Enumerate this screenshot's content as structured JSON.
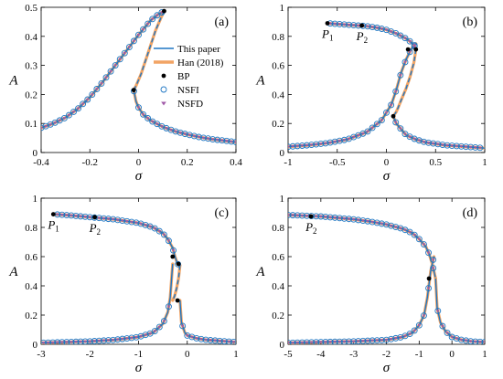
{
  "colors": {
    "this_paper": "#1f77c4",
    "han": "#f2a464",
    "bp": "#000000",
    "nsfi": "#1f77c4",
    "nsfd": "#a05aa8"
  },
  "legend": {
    "entries": [
      "This paper",
      "Han (2018)",
      "BP",
      "NSFI",
      "NSFD"
    ],
    "placement": "panel-a-right"
  },
  "chart_data": [
    {
      "type": "line",
      "panel_label": "(a)",
      "xlabel": "σ",
      "ylabel": "A",
      "xlim": [
        -0.4,
        0.4
      ],
      "ylim": [
        0,
        0.5
      ],
      "xticks": [
        "-0.4",
        "-0.2",
        "0",
        "0.2",
        "0.4"
      ],
      "yticks": [
        "0",
        "0.1",
        "0.2",
        "0.3",
        "0.4",
        "0.5"
      ],
      "upper_branch": {
        "x": [
          -0.4,
          -0.35,
          -0.3,
          -0.25,
          -0.2,
          -0.15,
          -0.1,
          -0.05,
          0.0,
          0.05,
          0.08,
          0.105
        ],
        "y": [
          0.085,
          0.1,
          0.12,
          0.15,
          0.19,
          0.24,
          0.295,
          0.35,
          0.405,
          0.455,
          0.475,
          0.487
        ]
      },
      "unstable_branch": {
        "x": [
          0.105,
          0.09,
          0.07,
          0.05,
          0.03,
          0.01,
          -0.01,
          -0.02
        ],
        "y": [
          0.487,
          0.46,
          0.42,
          0.37,
          0.32,
          0.27,
          0.23,
          0.215
        ]
      },
      "lower_branch": {
        "x": [
          -0.02,
          -0.01,
          0.0,
          0.02,
          0.05,
          0.1,
          0.15,
          0.2,
          0.25,
          0.3,
          0.35,
          0.4
        ],
        "y": [
          0.215,
          0.175,
          0.155,
          0.13,
          0.11,
          0.088,
          0.073,
          0.062,
          0.053,
          0.046,
          0.041,
          0.036
        ]
      },
      "bifurcation_points": [
        {
          "x": 0.105,
          "y": 0.487
        },
        {
          "x": -0.02,
          "y": 0.215
        }
      ],
      "annotations": []
    },
    {
      "type": "line",
      "panel_label": "(b)",
      "xlabel": "σ",
      "ylabel": "A",
      "xlim": [
        -1,
        1
      ],
      "ylim": [
        0,
        1
      ],
      "xticks": [
        "-1",
        "-0.5",
        "0",
        "0.5",
        "1"
      ],
      "yticks": [
        "0",
        "0.2",
        "0.4",
        "0.6",
        "0.8",
        "1"
      ],
      "upper_branch": {
        "x": [
          -0.6,
          -0.5,
          -0.4,
          -0.3,
          -0.2,
          -0.1,
          0.0,
          0.1,
          0.2,
          0.25,
          0.28,
          0.3
        ],
        "y": [
          0.89,
          0.885,
          0.88,
          0.875,
          0.87,
          0.86,
          0.845,
          0.82,
          0.785,
          0.76,
          0.74,
          0.71
        ]
      },
      "unstable_branch": {
        "x": [
          0.3,
          0.28,
          0.24,
          0.2,
          0.15,
          0.12,
          0.1,
          0.07
        ],
        "y": [
          0.71,
          0.62,
          0.52,
          0.44,
          0.36,
          0.31,
          0.28,
          0.25
        ]
      },
      "lower_branch": {
        "x": [
          -1.0,
          -0.8,
          -0.6,
          -0.4,
          -0.2,
          -0.05,
          0.05,
          0.1,
          0.15,
          0.2,
          0.25,
          0.3
        ],
        "y": [
          0.04,
          0.05,
          0.065,
          0.09,
          0.14,
          0.22,
          0.33,
          0.43,
          0.55,
          0.64,
          0.71,
          0.75
        ]
      },
      "tail_branch": {
        "x": [
          0.07,
          0.1,
          0.2,
          0.3,
          0.4,
          0.5,
          0.6,
          0.7,
          0.8,
          0.9,
          1.0
        ],
        "y": [
          0.25,
          0.2,
          0.12,
          0.09,
          0.07,
          0.06,
          0.05,
          0.045,
          0.04,
          0.035,
          0.03
        ]
      },
      "bifurcation_points": [
        {
          "x": -0.6,
          "y": 0.89
        },
        {
          "x": -0.25,
          "y": 0.875
        },
        {
          "x": 0.22,
          "y": 0.71
        },
        {
          "x": 0.3,
          "y": 0.71
        },
        {
          "x": 0.07,
          "y": 0.25
        }
      ],
      "annotations": [
        {
          "letter": "P",
          "sub": "1",
          "x": -0.6,
          "y": 0.89
        },
        {
          "letter": "P",
          "sub": "2",
          "x": -0.25,
          "y": 0.875
        }
      ]
    },
    {
      "type": "line",
      "panel_label": "(c)",
      "xlabel": "σ",
      "ylabel": "A",
      "xlim": [
        -3,
        1
      ],
      "ylim": [
        0,
        1
      ],
      "xticks": [
        "-3",
        "-2",
        "-1",
        "0",
        "1"
      ],
      "yticks": [
        "0",
        "0.2",
        "0.4",
        "0.6",
        "0.8",
        "1"
      ],
      "upper_branch": {
        "x": [
          -2.75,
          -2.5,
          -2.0,
          -1.5,
          -1.0,
          -0.7,
          -0.5,
          -0.4,
          -0.3,
          -0.25,
          -0.2,
          -0.15
        ],
        "y": [
          0.89,
          0.885,
          0.87,
          0.855,
          0.83,
          0.8,
          0.76,
          0.72,
          0.66,
          0.6,
          0.55,
          0.54
        ]
      },
      "unstable_branch": {
        "x": [
          -0.15,
          -0.18,
          -0.22,
          -0.26,
          -0.3
        ],
        "y": [
          0.54,
          0.45,
          0.38,
          0.33,
          0.3
        ]
      },
      "lower_branch": {
        "x": [
          -3.0,
          -2.5,
          -2.0,
          -1.5,
          -1.0,
          -0.7,
          -0.5,
          -0.4,
          -0.35,
          -0.3
        ],
        "y": [
          0.01,
          0.015,
          0.02,
          0.03,
          0.05,
          0.08,
          0.14,
          0.22,
          0.32,
          0.55
        ]
      },
      "tail_branch": {
        "x": [
          -0.15,
          -0.12,
          -0.05,
          0.0,
          0.2,
          0.4,
          0.6,
          0.8,
          1.0
        ],
        "y": [
          0.3,
          0.15,
          0.08,
          0.06,
          0.04,
          0.03,
          0.025,
          0.02,
          0.015
        ]
      },
      "bifurcation_points": [
        {
          "x": -2.75,
          "y": 0.89
        },
        {
          "x": -1.9,
          "y": 0.87
        },
        {
          "x": -0.3,
          "y": 0.6
        },
        {
          "x": -0.18,
          "y": 0.55
        },
        {
          "x": -0.2,
          "y": 0.3
        }
      ],
      "annotations": [
        {
          "letter": "P",
          "sub": "1",
          "x": -2.75,
          "y": 0.89
        },
        {
          "letter": "P",
          "sub": "2",
          "x": -1.9,
          "y": 0.87
        }
      ]
    },
    {
      "type": "line",
      "panel_label": "(d)",
      "xlabel": "σ",
      "ylabel": "A",
      "xlim": [
        -5,
        1
      ],
      "ylim": [
        0,
        1
      ],
      "xticks": [
        "-5",
        "-4",
        "-3",
        "-2",
        "-1",
        "0",
        "1"
      ],
      "yticks": [
        "0",
        "0.2",
        "0.4",
        "0.6",
        "0.8",
        "1"
      ],
      "upper_branch": {
        "x": [
          -5.0,
          -4.5,
          -4.0,
          -3.5,
          -3.0,
          -2.5,
          -2.0,
          -1.5,
          -1.2,
          -1.0,
          -0.8,
          -0.7,
          -0.6,
          -0.5
        ],
        "y": [
          0.885,
          0.88,
          0.875,
          0.865,
          0.855,
          0.84,
          0.82,
          0.79,
          0.76,
          0.72,
          0.67,
          0.62,
          0.55,
          0.45
        ]
      },
      "unstable_branch": {
        "x": [],
        "y": []
      },
      "lower_branch": {
        "x": [
          -5.0,
          -4.0,
          -3.0,
          -2.0,
          -1.5,
          -1.2,
          -1.0,
          -0.85,
          -0.75,
          -0.65,
          -0.55
        ],
        "y": [
          0.01,
          0.015,
          0.02,
          0.03,
          0.05,
          0.08,
          0.13,
          0.2,
          0.32,
          0.5,
          0.6
        ]
      },
      "tail_branch": {
        "x": [
          -0.5,
          -0.45,
          -0.35,
          -0.2,
          0.0,
          0.3,
          0.6,
          1.0
        ],
        "y": [
          0.45,
          0.25,
          0.15,
          0.09,
          0.05,
          0.03,
          0.02,
          0.015
        ]
      },
      "bifurcation_points": [
        {
          "x": -4.3,
          "y": 0.875
        },
        {
          "x": -0.7,
          "y": 0.45
        }
      ],
      "annotations": [
        {
          "letter": "P",
          "sub": "2",
          "x": -4.3,
          "y": 0.875
        }
      ]
    }
  ]
}
